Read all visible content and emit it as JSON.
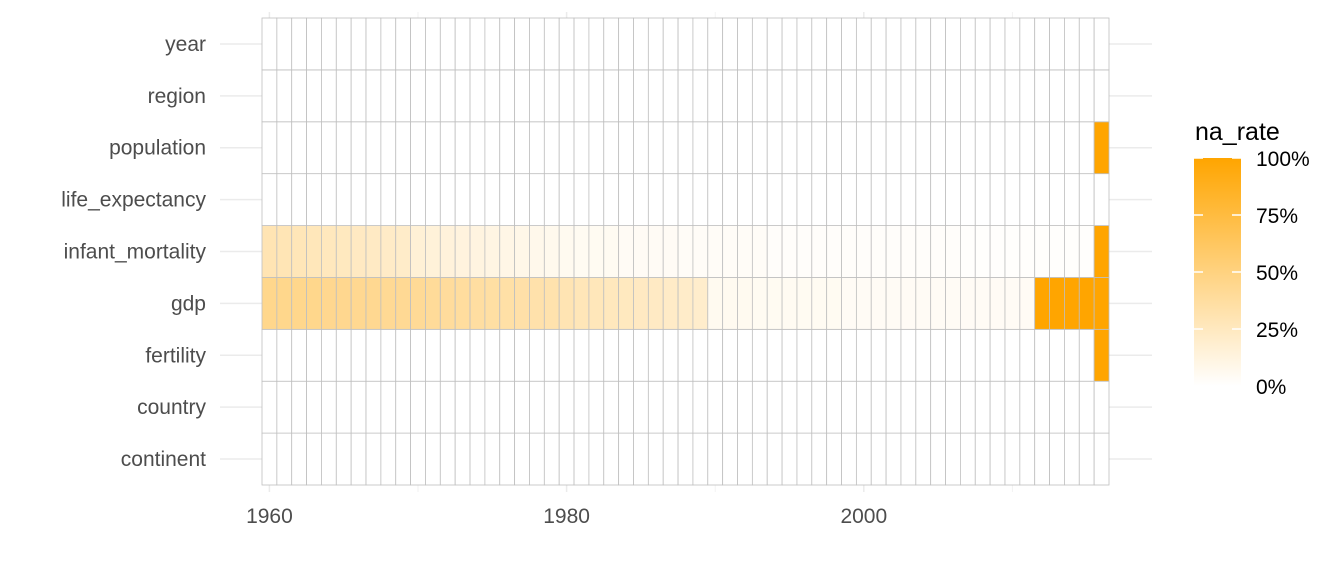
{
  "chart_data": {
    "type": "heatmap",
    "title": "",
    "xlabel": "",
    "ylabel": "",
    "x": [
      1960,
      1961,
      1962,
      1963,
      1964,
      1965,
      1966,
      1967,
      1968,
      1969,
      1970,
      1971,
      1972,
      1973,
      1974,
      1975,
      1976,
      1977,
      1978,
      1979,
      1980,
      1981,
      1982,
      1983,
      1984,
      1985,
      1986,
      1987,
      1988,
      1989,
      1990,
      1991,
      1992,
      1993,
      1994,
      1995,
      1996,
      1997,
      1998,
      1999,
      2000,
      2001,
      2002,
      2003,
      2004,
      2005,
      2006,
      2007,
      2008,
      2009,
      2010,
      2011,
      2012,
      2013,
      2014,
      2015,
      2016
    ],
    "x_ticks": [
      "1960",
      "1980",
      "2000"
    ],
    "xlim": [
      1959.5,
      2016.5
    ],
    "y": [
      "continent",
      "country",
      "fertility",
      "gdp",
      "infant_mortality",
      "life_expectancy",
      "population",
      "region",
      "year"
    ],
    "grid": true,
    "series": [
      {
        "name": "continent",
        "values": [
          0,
          0,
          0,
          0,
          0,
          0,
          0,
          0,
          0,
          0,
          0,
          0,
          0,
          0,
          0,
          0,
          0,
          0,
          0,
          0,
          0,
          0,
          0,
          0,
          0,
          0,
          0,
          0,
          0,
          0,
          0,
          0,
          0,
          0,
          0,
          0,
          0,
          0,
          0,
          0,
          0,
          0,
          0,
          0,
          0,
          0,
          0,
          0,
          0,
          0,
          0,
          0,
          0,
          0,
          0,
          0,
          0
        ]
      },
      {
        "name": "country",
        "values": [
          0,
          0,
          0,
          0,
          0,
          0,
          0,
          0,
          0,
          0,
          0,
          0,
          0,
          0,
          0,
          0,
          0,
          0,
          0,
          0,
          0,
          0,
          0,
          0,
          0,
          0,
          0,
          0,
          0,
          0,
          0,
          0,
          0,
          0,
          0,
          0,
          0,
          0,
          0,
          0,
          0,
          0,
          0,
          0,
          0,
          0,
          0,
          0,
          0,
          0,
          0,
          0,
          0,
          0,
          0,
          0,
          0
        ]
      },
      {
        "name": "fertility",
        "values": [
          0,
          0,
          0,
          0,
          0,
          0,
          0,
          0,
          0,
          0,
          0,
          0,
          0,
          0,
          0,
          0,
          0,
          0,
          0,
          0,
          0,
          0,
          0,
          0,
          0,
          0,
          0,
          0,
          0,
          0,
          0,
          0,
          0,
          0,
          0,
          0,
          0,
          0,
          0,
          0,
          0,
          0,
          0,
          0,
          0,
          0,
          0,
          0,
          0,
          0,
          0,
          0,
          0,
          0,
          0,
          0,
          1.0
        ]
      },
      {
        "name": "gdp",
        "values": [
          0.45,
          0.45,
          0.45,
          0.45,
          0.44,
          0.44,
          0.43,
          0.43,
          0.42,
          0.42,
          0.41,
          0.4,
          0.39,
          0.38,
          0.37,
          0.36,
          0.35,
          0.34,
          0.33,
          0.32,
          0.3,
          0.28,
          0.27,
          0.26,
          0.25,
          0.24,
          0.23,
          0.22,
          0.21,
          0.2,
          0.06,
          0.06,
          0.06,
          0.05,
          0.05,
          0.05,
          0.05,
          0.05,
          0.05,
          0.04,
          0.04,
          0.04,
          0.04,
          0.04,
          0.04,
          0.04,
          0.04,
          0.04,
          0.04,
          0.04,
          0.04,
          0.04,
          1.0,
          1.0,
          1.0,
          1.0,
          1.0
        ]
      },
      {
        "name": "infant_mortality",
        "values": [
          0.3,
          0.29,
          0.28,
          0.27,
          0.26,
          0.25,
          0.24,
          0.23,
          0.22,
          0.21,
          0.16,
          0.15,
          0.14,
          0.13,
          0.12,
          0.11,
          0.1,
          0.09,
          0.08,
          0.07,
          0.06,
          0.05,
          0.05,
          0.05,
          0.04,
          0.04,
          0.04,
          0.04,
          0.03,
          0.03,
          0.03,
          0.03,
          0.03,
          0.03,
          0.02,
          0.02,
          0.02,
          0.02,
          0.02,
          0.02,
          0.02,
          0.02,
          0.02,
          0.02,
          0.02,
          0.02,
          0.02,
          0.01,
          0.01,
          0.01,
          0.01,
          0.01,
          0.01,
          0.01,
          0.01,
          0.01,
          1.0
        ]
      },
      {
        "name": "life_expectancy",
        "values": [
          0,
          0,
          0,
          0,
          0,
          0,
          0,
          0,
          0,
          0,
          0,
          0,
          0,
          0,
          0,
          0,
          0,
          0,
          0,
          0,
          0,
          0,
          0,
          0,
          0,
          0,
          0,
          0,
          0,
          0,
          0,
          0,
          0,
          0,
          0,
          0,
          0,
          0,
          0,
          0,
          0,
          0,
          0,
          0,
          0,
          0,
          0,
          0,
          0,
          0,
          0,
          0,
          0,
          0,
          0,
          0,
          0
        ]
      },
      {
        "name": "population",
        "values": [
          0,
          0,
          0,
          0,
          0,
          0,
          0,
          0,
          0,
          0,
          0,
          0,
          0,
          0,
          0,
          0,
          0,
          0,
          0,
          0,
          0,
          0,
          0,
          0,
          0,
          0,
          0,
          0,
          0,
          0,
          0,
          0,
          0,
          0,
          0,
          0,
          0,
          0,
          0,
          0,
          0,
          0,
          0,
          0,
          0,
          0,
          0,
          0,
          0,
          0,
          0,
          0,
          0,
          0,
          0,
          0,
          1.0
        ]
      },
      {
        "name": "region",
        "values": [
          0,
          0,
          0,
          0,
          0,
          0,
          0,
          0,
          0,
          0,
          0,
          0,
          0,
          0,
          0,
          0,
          0,
          0,
          0,
          0,
          0,
          0,
          0,
          0,
          0,
          0,
          0,
          0,
          0,
          0,
          0,
          0,
          0,
          0,
          0,
          0,
          0,
          0,
          0,
          0,
          0,
          0,
          0,
          0,
          0,
          0,
          0,
          0,
          0,
          0,
          0,
          0,
          0,
          0,
          0,
          0,
          0
        ]
      },
      {
        "name": "year",
        "values": [
          0,
          0,
          0,
          0,
          0,
          0,
          0,
          0,
          0,
          0,
          0,
          0,
          0,
          0,
          0,
          0,
          0,
          0,
          0,
          0,
          0,
          0,
          0,
          0,
          0,
          0,
          0,
          0,
          0,
          0,
          0,
          0,
          0,
          0,
          0,
          0,
          0,
          0,
          0,
          0,
          0,
          0,
          0,
          0,
          0,
          0,
          0,
          0,
          0,
          0,
          0,
          0,
          0,
          0,
          0,
          0,
          0
        ]
      }
    ],
    "legend": {
      "title": "na_rate",
      "position": "right",
      "labels": [
        "100%",
        "75%",
        "50%",
        "25%",
        "0%"
      ],
      "breaks": [
        1.0,
        0.75,
        0.5,
        0.25,
        0.0
      ]
    },
    "colors": {
      "low": "#ffffff",
      "high": "#ffa500",
      "grid": "#ebebeb",
      "tile_border": "#bfbfbf"
    }
  }
}
